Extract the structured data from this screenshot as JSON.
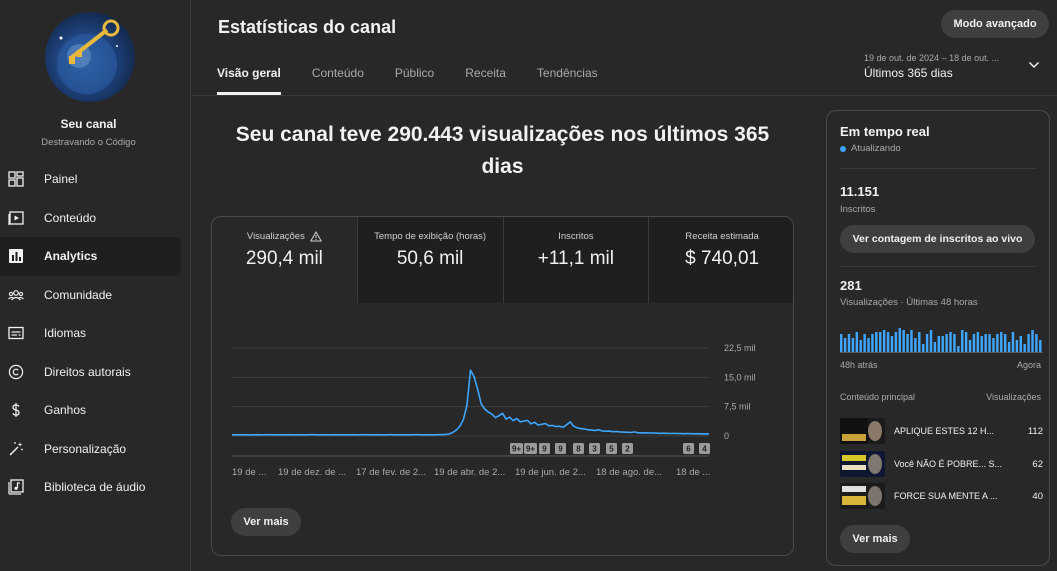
{
  "sidebar": {
    "channel_name": "Seu canal",
    "channel_subtitle": "Destravando o Código",
    "items": [
      {
        "label": "Painel",
        "icon": "dashboard-icon"
      },
      {
        "label": "Conteúdo",
        "icon": "content-icon"
      },
      {
        "label": "Analytics",
        "icon": "analytics-icon",
        "active": true
      },
      {
        "label": "Comunidade",
        "icon": "community-icon"
      },
      {
        "label": "Idiomas",
        "icon": "subtitles-icon"
      },
      {
        "label": "Direitos autorais",
        "icon": "copyright-icon"
      },
      {
        "label": "Ganhos",
        "icon": "dollar-icon"
      },
      {
        "label": "Personalização",
        "icon": "magic-wand-icon"
      },
      {
        "label": "Biblioteca de áudio",
        "icon": "audio-library-icon"
      }
    ]
  },
  "header": {
    "title": "Estatísticas do canal",
    "advanced_mode": "Modo avançado",
    "tabs": [
      "Visão geral",
      "Conteúdo",
      "Público",
      "Receita",
      "Tendências"
    ],
    "date_range": "19 de out. de 2024 – 18 de out. ...",
    "date_label": "Últimos 365 dias"
  },
  "headline": "Seu canal teve 290.443 visualizações nos últimos 365 dias",
  "metrics": [
    {
      "label": "Visualizações",
      "value": "290,4 mil",
      "warning": true
    },
    {
      "label": "Tempo de exibição (horas)",
      "value": "50,6 mil"
    },
    {
      "label": "Inscritos",
      "value": "+11,1 mil"
    },
    {
      "label": "Receita estimada",
      "value": "$ 740,01"
    }
  ],
  "chart_data": {
    "type": "line",
    "title": "",
    "xlabel": "",
    "ylabel": "",
    "ylim": [
      0,
      22500
    ],
    "yticks": [
      "22,5 mil",
      "15,0 mil",
      "7,5 mil",
      "0"
    ],
    "ytick_values": [
      22500,
      15000,
      7500,
      0
    ],
    "xticks": [
      "19 de ...",
      "19 de dez. de ...",
      "17 de fev. de 2...",
      "19 de abr. de 2...",
      "19 de jun. de 2...",
      "18 de ago. de...",
      "18 de ..."
    ],
    "grid": true,
    "series": [
      {
        "values": [
          300,
          320,
          310,
          330,
          300,
          290,
          310,
          320,
          300,
          310,
          330,
          320,
          310,
          300,
          320,
          310,
          330,
          300,
          310,
          320,
          300,
          310,
          320,
          330,
          310,
          300,
          320,
          310,
          300,
          320,
          310,
          330,
          300,
          310,
          320,
          300,
          310,
          330,
          320,
          310,
          300,
          320,
          310,
          300,
          320,
          330,
          310,
          300,
          320,
          310,
          300,
          330,
          320,
          310,
          300,
          320,
          310,
          300,
          320,
          330,
          400,
          500,
          900,
          1500,
          2500,
          4200,
          7800,
          16800,
          15200,
          12000,
          8200,
          6900,
          6100,
          5600,
          4700,
          5200,
          5800,
          4300,
          4800,
          3900,
          4500,
          3600,
          3800,
          4000,
          3100,
          3500,
          2800,
          3000,
          3200,
          2600,
          2700,
          2400,
          2500,
          2200,
          2900,
          3600,
          2500,
          2100,
          1900,
          1800,
          1600,
          1500,
          1400,
          1600,
          1300,
          1200,
          1250,
          1100,
          1150,
          1050,
          1000,
          950,
          900,
          1050,
          850,
          800,
          820,
          780,
          760,
          740,
          700,
          720,
          680,
          650,
          660,
          640,
          620,
          600,
          640,
          580,
          560,
          600,
          540,
          560,
          520
        ]
      }
    ],
    "markers": [
      "9+",
      "9+",
      "9",
      "9",
      "8",
      "3",
      "5",
      "2",
      "6",
      "4"
    ]
  },
  "chart_more": "Ver mais",
  "realtime": {
    "title": "Em tempo real",
    "status": "Atualizando",
    "subscribers_value": "11.151",
    "subscribers_label": "Inscritos",
    "live_count_button": "Ver contagem de inscritos ao vivo",
    "views_value": "281",
    "views_label": "Visualizações · Últimas 48 horas",
    "spark_values": [
      9,
      7,
      9,
      7,
      10,
      6,
      9,
      7,
      9,
      10,
      10,
      11,
      10,
      8,
      10,
      12,
      11,
      9,
      11,
      7,
      10,
      4,
      9,
      11,
      5,
      8,
      8,
      9,
      10,
      9,
      3,
      11,
      10,
      6,
      9,
      10,
      8,
      9,
      9,
      7,
      9,
      10,
      9,
      5,
      10,
      6,
      8,
      4,
      9,
      11,
      9,
      6
    ],
    "ago_left": "48h atrás",
    "ago_right": "Agora",
    "top_content_label": "Conteúdo principal",
    "top_views_label": "Visualizações",
    "top_content": [
      {
        "title": "APLIQUE ESTES 12 H...",
        "views": "112",
        "thumb_color": "#b78b2a"
      },
      {
        "title": "Você NÃO É POBRE... S...",
        "views": "62",
        "thumb_color": "#d7c52a"
      },
      {
        "title": "FORCE SUA MENTE A ...",
        "views": "40",
        "thumb_color": "#c23b2c"
      }
    ],
    "more_button": "Ver mais"
  },
  "colors": {
    "background": "#282828",
    "accent_line": "#3ea6ff",
    "button_bg": "#3f3f3f"
  }
}
